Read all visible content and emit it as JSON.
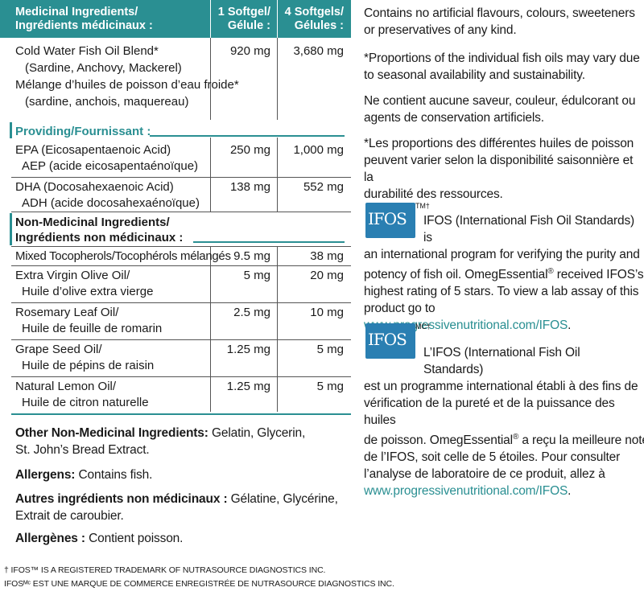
{
  "table": {
    "header": {
      "ingredient": "Medicinal Ingredients/\nIngrédients médicinaux :",
      "col1": "1 Softgel/\nGélule :",
      "col2": "4 Softgels/\nGélules :"
    },
    "fish_oil": {
      "name_en": "Cold Water Fish Oil Blend*",
      "sub_en": "(Sardine, Anchovy, Mackerel)",
      "name_fr": "Mélange d’huiles de poisson d’eau froide*",
      "sub_fr": "(sardine, anchois, maquereau)",
      "v1": "920 mg",
      "v2": "3,680 mg"
    },
    "providing_label": "Providing/Fournissant :",
    "providing": [
      {
        "l1": "EPA (Eicosapentaenoic Acid)",
        "l2": "AEP (acide eicosapentaénoïque)",
        "v1": "250 mg",
        "v2": "1,000 mg"
      },
      {
        "l1": "DHA (Docosahexaenoic Acid)",
        "l2": "ADH (acide docosahexaénoïque)",
        "v1": "138 mg",
        "v2": "552 mg"
      }
    ],
    "non_med_label_1": "Non-Medicinal Ingredients/",
    "non_med_label_2": "Ingrédients non médicinaux :",
    "non_med": [
      {
        "l1": "Mixed Tocopherols/Tocophérols mélangés",
        "l2": "",
        "v1": "9.5 mg",
        "v2": "38 mg"
      },
      {
        "l1": "Extra Virgin Olive Oil/",
        "l2": "Huile d’olive extra vierge",
        "v1": "5 mg",
        "v2": "20 mg"
      },
      {
        "l1": "Rosemary Leaf Oil/",
        "l2": "Huile de feuille de romarin",
        "v1": "2.5 mg",
        "v2": "10 mg"
      },
      {
        "l1": "Grape Seed Oil/",
        "l2": "Huile de pépins de raisin",
        "v1": "1.25 mg",
        "v2": "5 mg"
      },
      {
        "l1": "Natural Lemon Oil/",
        "l2": "Huile de citron naturelle",
        "v1": "1.25 mg",
        "v2": "5 mg"
      }
    ]
  },
  "other": {
    "en_label": "Other Non-Medicinal Ingredients:",
    "en_text_1": " Gelatin, Glycerin,",
    "en_text_2": "St. John’s Bread Extract.",
    "allergens_label": "Allergens:",
    "allergens_text": " Contains fish.",
    "fr_label": "Autres ingrédients non médicinaux :",
    "fr_text_1": " Gélatine, Glycérine,",
    "fr_text_2": "Extrait de caroubier.",
    "allergenes_label": "Allergènes :",
    "allergenes_text": " Contient poisson."
  },
  "footnotes": {
    "en": "† IFOS™ IS A REGISTERED TRADEMARK OF NUTRASOURCE DIAGNOSTICS INC.",
    "fr": "IFOSᴹᶜ EST UNE MARQUE DE COMMERCE ENREGISTRÉE DE NUTRASOURCE DIAGNOSTICS INC."
  },
  "right": {
    "p1": [
      "Contains no artificial flavours, colours, sweeteners",
      "or preservatives of any kind."
    ],
    "p2": [
      "*Proportions of the individual fish oils may vary due",
      "to seasonal availability and sustainability."
    ],
    "p3": [
      "Ne contient aucune saveur, couleur, édulcorant ou",
      "agents de conservation artificiels."
    ],
    "p4": [
      "*Les proportions des différentes huiles de poisson",
      "peuvent varier selon la disponibilité saisonnière et la",
      "durabilité des ressources."
    ],
    "ifos_en": {
      "logo": "IFOS",
      "mark": "TM†",
      "l1": "IFOS (International Fish Oil Standards) is",
      "l2": "an international program for verifying the purity and",
      "l3a": "potency of fish oil. OmegEssential",
      "reg": "®",
      "l3b": " received IFOS’s",
      "l4": "highest rating of 5 stars. To view a lab assay of this",
      "l5a": "product go to ",
      "url": "www.progressivenutritional.com/IFOS",
      "l5b": "."
    },
    "ifos_fr": {
      "logo": "IFOS",
      "mark": "MC†",
      "l1": "L’IFOS (International Fish Oil Standards)",
      "l2": "est un programme international établi à des fins de",
      "l3": "vérification de la pureté et de la puissance des huiles",
      "l4a": "de poisson. OmegEssential",
      "reg": "®",
      "l4b": " a reçu la meilleure note",
      "l5": "de l’IFOS, soit celle de 5 étoiles. Pour consulter",
      "l6": "l’analyse de laboratoire de ce produit, allez à",
      "url": "www.progressivenutritional.com/IFOS",
      "end": "."
    }
  }
}
